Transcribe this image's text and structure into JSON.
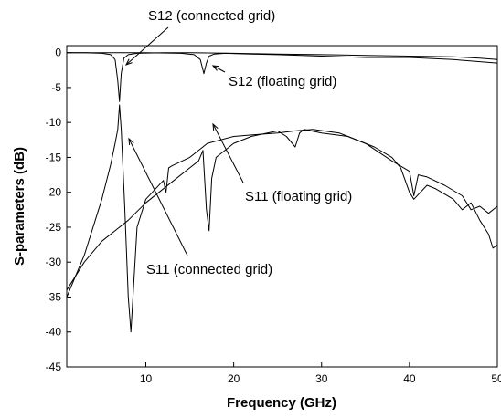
{
  "chart_data": {
    "type": "line",
    "xlabel": "Frequency (GHz)",
    "ylabel": "S-parameters (dB)",
    "xlim": [
      1,
      50
    ],
    "ylim": [
      -45,
      1
    ],
    "x_ticks": [
      10,
      20,
      30,
      40,
      50
    ],
    "y_ticks": [
      0,
      -5,
      -10,
      -15,
      -20,
      -25,
      -30,
      -35,
      -40,
      -45
    ],
    "grid": false,
    "series": [
      {
        "name": "S12 (connected grid)",
        "x": [
          1,
          3,
          5,
          6,
          6.5,
          6.8,
          7.0,
          7.2,
          7.5,
          8,
          9,
          12,
          15,
          20,
          25,
          30,
          35,
          40,
          45,
          48,
          50
        ],
        "y": [
          0,
          0,
          -0.1,
          -0.3,
          -1.0,
          -4.0,
          -7.0,
          -3.0,
          -0.8,
          -0.3,
          -0.1,
          0,
          0,
          -0.1,
          -0.2,
          -0.3,
          -0.4,
          -0.5,
          -0.6,
          -0.8,
          -1.0
        ]
      },
      {
        "name": "S12 (floating grid)",
        "x": [
          1,
          5,
          10,
          14,
          15.5,
          16.2,
          16.6,
          16.9,
          17.2,
          17.8,
          19,
          22,
          25,
          30,
          35,
          40,
          45,
          48,
          50
        ],
        "y": [
          0,
          0,
          0,
          -0.1,
          -0.3,
          -1.0,
          -3.0,
          -1.5,
          -0.5,
          -0.2,
          -0.1,
          -0.2,
          -0.3,
          -0.5,
          -0.7,
          -0.7,
          -1.0,
          -1.3,
          -1.5
        ]
      },
      {
        "name": "S11 (connected grid)",
        "x": [
          1,
          3,
          5,
          6,
          6.5,
          6.8,
          7.0,
          7.2,
          7.6,
          8.0,
          8.3,
          9,
          10,
          12,
          12.3,
          12.6,
          13,
          15,
          17,
          20,
          22,
          25,
          27,
          29,
          32,
          35,
          38,
          40,
          40.5,
          41,
          42,
          44,
          46,
          47,
          48,
          49,
          50
        ],
        "y": [
          -35,
          -29,
          -21,
          -16,
          -13,
          -11,
          -7.5,
          -11,
          -22,
          -35,
          -40,
          -25,
          -21,
          -18.3,
          -20,
          -16.5,
          -16.2,
          -15,
          -13,
          -12,
          -11.8,
          -11.5,
          -11.2,
          -11,
          -11.5,
          -13,
          -15.5,
          -17,
          -20.5,
          -17.5,
          -17.8,
          -19,
          -20.5,
          -22.5,
          -22,
          -23,
          -22
        ]
      },
      {
        "name": "S11 (floating grid)",
        "x": [
          1,
          3,
          5,
          8,
          10,
          13,
          15,
          16,
          16.5,
          16.9,
          17.2,
          17.5,
          18,
          20,
          22,
          25,
          26,
          27,
          27.5,
          28,
          30,
          33,
          36,
          38,
          39,
          40,
          40.5,
          42,
          43,
          45,
          46,
          47,
          48,
          49,
          49.5,
          50
        ],
        "y": [
          -34,
          -30,
          -27,
          -24,
          -21.5,
          -18.5,
          -16.5,
          -15.5,
          -14,
          -22.5,
          -25.5,
          -18,
          -15,
          -13,
          -12,
          -11.2,
          -12,
          -13.5,
          -11.5,
          -11,
          -11.5,
          -12,
          -13.5,
          -15,
          -16.5,
          -20,
          -21,
          -19,
          -19.5,
          -21,
          -22.5,
          -21.5,
          -24,
          -26,
          -28,
          -27.5
        ]
      }
    ],
    "annotations": [
      "S12 (connected grid)",
      "S12 (floating grid)",
      "S11 (floating grid)",
      "S11 (connected grid)"
    ]
  }
}
